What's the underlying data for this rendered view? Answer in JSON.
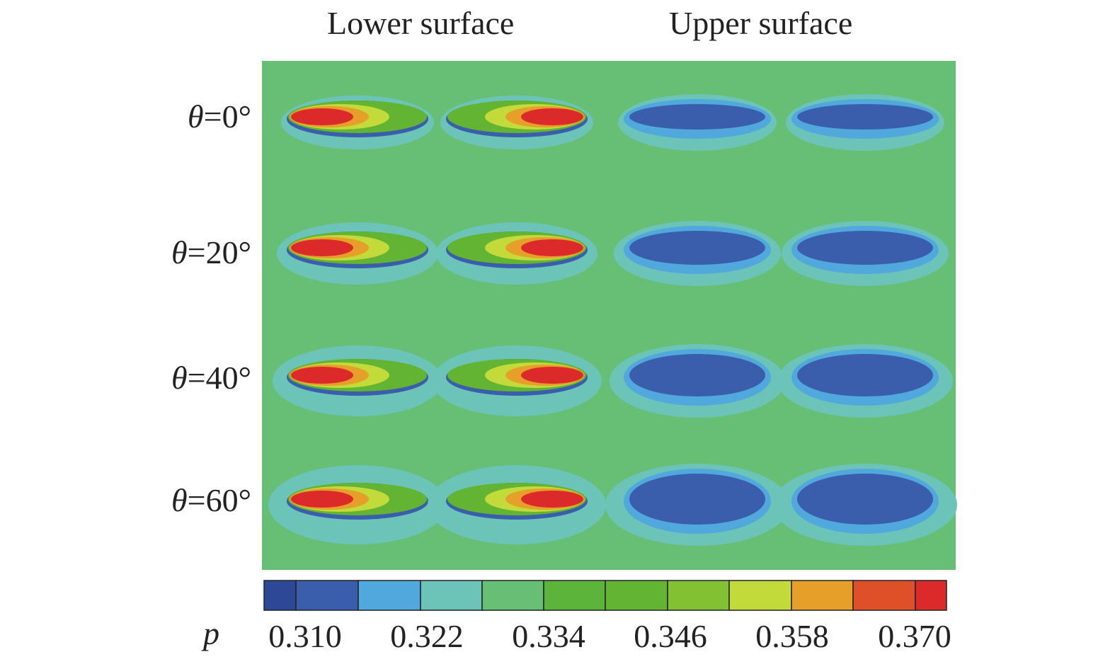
{
  "chart_data": {
    "type": "heatmap",
    "columns": [
      "Lower surface",
      "Upper surface"
    ],
    "rows": [
      {
        "theta_symbol": "θ",
        "label": "=0°",
        "angle_deg": 0
      },
      {
        "theta_symbol": "θ",
        "label": "=20°",
        "angle_deg": 20
      },
      {
        "theta_symbol": "θ",
        "label": "=40°",
        "angle_deg": 40
      },
      {
        "theta_symbol": "θ",
        "label": "=60°",
        "angle_deg": 60
      }
    ],
    "colorbar": {
      "variable": "p",
      "range": [
        0.304,
        0.376
      ],
      "tick_labels": [
        "0.310",
        "0.322",
        "0.334",
        "0.346",
        "0.358",
        "0.370"
      ],
      "tick_values": [
        0.31,
        0.322,
        0.334,
        0.346,
        0.358,
        0.37
      ],
      "level_colors": [
        "#2e4898",
        "#3a5eac",
        "#50a8dc",
        "#6cc4b8",
        "#66bf74",
        "#5db43a",
        "#62b432",
        "#82c232",
        "#c2da3a",
        "#e6a02a",
        "#e05028",
        "#dc2a2a"
      ]
    },
    "background_level_color": "#66bf74"
  }
}
